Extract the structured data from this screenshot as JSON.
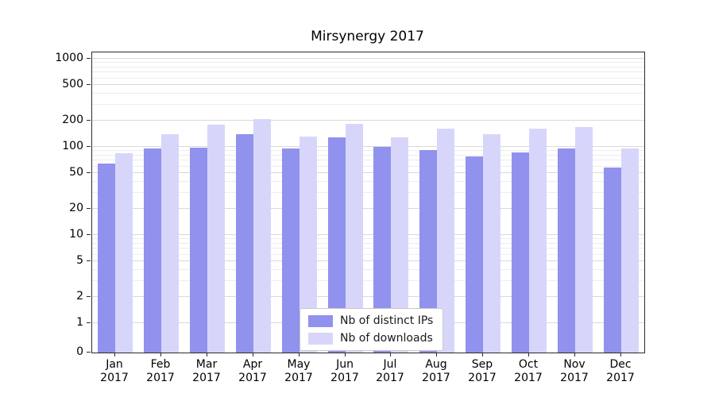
{
  "chart_data": {
    "type": "bar",
    "title": "Mirsynergy 2017",
    "categories": [
      "Jan 2017",
      "Feb 2017",
      "Mar 2017",
      "Apr 2017",
      "May 2017",
      "Jun 2017",
      "Jul 2017",
      "Aug 2017",
      "Sep 2017",
      "Oct 2017",
      "Nov 2017",
      "Dec 2017"
    ],
    "series": [
      {
        "name": "Nb of distinct IPs",
        "color": "#9191ee",
        "values": [
          65,
          95,
          97,
          140,
          95,
          128,
          100,
          92,
          78,
          87,
          95,
          58
        ]
      },
      {
        "name": "Nb of downloads",
        "color": "#d7d6fa",
        "values": [
          85,
          140,
          178,
          205,
          130,
          182,
          127,
          162,
          140,
          162,
          168,
          95
        ]
      }
    ],
    "yscale": "symlog",
    "yticks": [
      0,
      1,
      2,
      5,
      10,
      20,
      50,
      100,
      200,
      500,
      1000
    ],
    "minor_gridline_multipliers": [
      3,
      4,
      6,
      7,
      8,
      9
    ],
    "xlabel": "",
    "ylabel": "",
    "grid": true,
    "legend_position": "lower center"
  }
}
